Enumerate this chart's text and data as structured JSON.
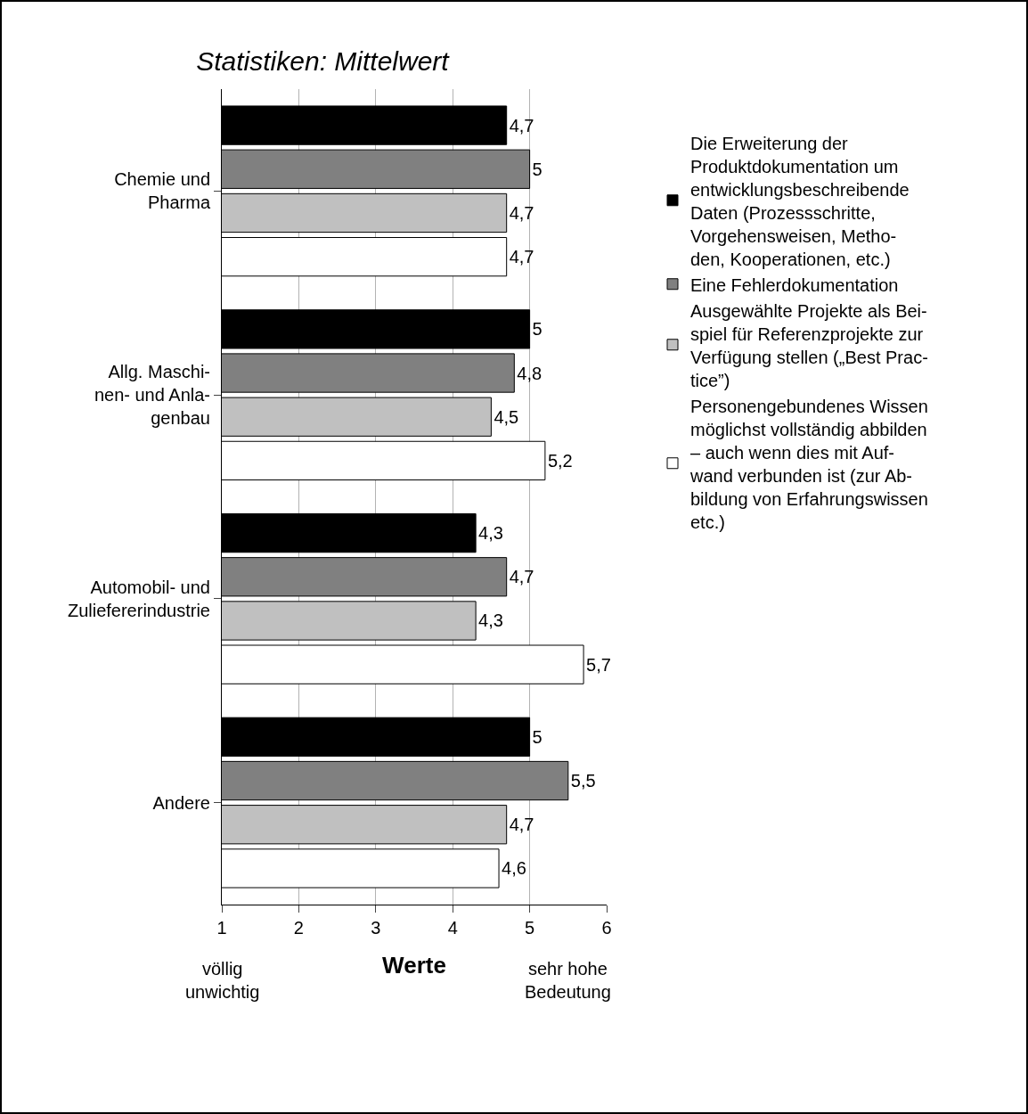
{
  "chart_data": {
    "type": "bar",
    "orientation": "horizontal",
    "title": "Statistiken: Mittelwert",
    "xlabel": "Werte",
    "categories": [
      "Chemie und\nPharma",
      "Allg. Maschi-\nnen- und Anla-\ngenbau",
      "Automobil- und\nZuliefererindustrie",
      "Andere"
    ],
    "series": [
      {
        "name": "Die Erweiterung der\nProduktdokumentation um\nentwicklungsbeschreibende\nDaten (Prozessschritte,\nVorgehensweisen, Metho-\nden, Kooperationen, etc.)",
        "color": "#000000",
        "values": [
          4.7,
          5,
          4.3,
          5
        ],
        "value_labels": [
          "4,7",
          "5",
          "4,3",
          "5"
        ]
      },
      {
        "name": "Eine Fehlerdokumentation",
        "color": "#808080",
        "values": [
          5,
          4.8,
          4.7,
          5.5
        ],
        "value_labels": [
          "5",
          "4,8",
          "4,7",
          "5,5"
        ]
      },
      {
        "name": "Ausgewählte Projekte als Bei-\nspiel für Referenzprojekte zur\nVerfügung stellen („Best Prac-\ntice”)",
        "color": "#c0c0c0",
        "values": [
          4.7,
          4.5,
          4.3,
          4.7
        ],
        "value_labels": [
          "4,7",
          "4,5",
          "4,3",
          "4,7"
        ]
      },
      {
        "name": "Personengebundenes Wissen\nmöglichst vollständig abbilden\n– auch wenn dies mit Auf-\nwand verbunden ist (zur Ab-\nbildung von Erfahrungswissen\netc.)",
        "color": "#ffffff",
        "values": [
          4.7,
          5.2,
          5.7,
          4.6
        ],
        "value_labels": [
          "4,7",
          "5,2",
          "5,7",
          "4,6"
        ]
      }
    ],
    "xlim": [
      1,
      6
    ],
    "xticks": [
      1,
      2,
      3,
      4,
      5,
      6
    ],
    "grid": "x",
    "legend": "right",
    "annotations": [
      "völlig\nunwichtig",
      "sehr hohe\nBedeutung"
    ]
  }
}
